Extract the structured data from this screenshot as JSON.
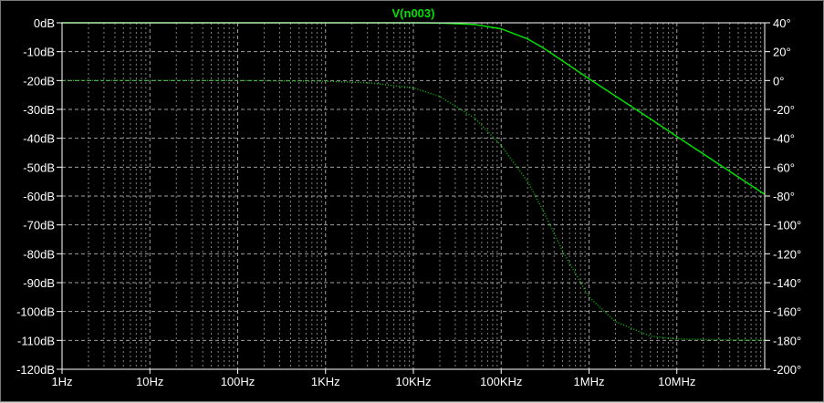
{
  "chart_data": {
    "type": "line",
    "title": "V(n003)",
    "x_scale": "log",
    "x_unit": "Hz",
    "xlim": [
      1,
      100000000
    ],
    "x_ticks": [
      {
        "value": 1,
        "label": "1Hz"
      },
      {
        "value": 10,
        "label": "10Hz"
      },
      {
        "value": 100,
        "label": "100Hz"
      },
      {
        "value": 1000,
        "label": "1KHz"
      },
      {
        "value": 10000,
        "label": "10KHz"
      },
      {
        "value": 100000,
        "label": "100KHz"
      },
      {
        "value": 1000000,
        "label": "1MHz"
      },
      {
        "value": 10000000,
        "label": "10MHz"
      }
    ],
    "y_left": {
      "unit": "dB",
      "ylim": [
        -120,
        0
      ],
      "ticks": [
        {
          "value": 0,
          "label": "0dB"
        },
        {
          "value": -10,
          "label": "-10dB"
        },
        {
          "value": -20,
          "label": "-20dB"
        },
        {
          "value": -30,
          "label": "-30dB"
        },
        {
          "value": -40,
          "label": "-40dB"
        },
        {
          "value": -50,
          "label": "-50dB"
        },
        {
          "value": -60,
          "label": "-60dB"
        },
        {
          "value": -70,
          "label": "-70dB"
        },
        {
          "value": -80,
          "label": "-80dB"
        },
        {
          "value": -90,
          "label": "-90dB"
        },
        {
          "value": -100,
          "label": "-100dB"
        },
        {
          "value": -110,
          "label": "-110dB"
        },
        {
          "value": -120,
          "label": "-120dB"
        }
      ]
    },
    "y_right": {
      "unit": "°",
      "ylim": [
        -200,
        40
      ],
      "ticks": [
        {
          "value": 40,
          "label": "40°"
        },
        {
          "value": 20,
          "label": "20°"
        },
        {
          "value": 0,
          "label": "0°"
        },
        {
          "value": -20,
          "label": "-20°"
        },
        {
          "value": -40,
          "label": "-40°"
        },
        {
          "value": -60,
          "label": "-60°"
        },
        {
          "value": -80,
          "label": "-80°"
        },
        {
          "value": -100,
          "label": "-100°"
        },
        {
          "value": -120,
          "label": "-120°"
        },
        {
          "value": -140,
          "label": "-140°"
        },
        {
          "value": -160,
          "label": "-160°"
        },
        {
          "value": -180,
          "label": "-180°"
        },
        {
          "value": -200,
          "label": "-200°"
        }
      ]
    },
    "grid": true,
    "series": [
      {
        "quantity": "magnitude",
        "axis": "left",
        "style": "solid",
        "color": "#00e000",
        "x": [
          1,
          10,
          100,
          1000,
          10000,
          20000,
          50000,
          100000,
          200000,
          300000,
          500000,
          1000000,
          2000000,
          5000000,
          10000000,
          20000000,
          50000000,
          100000000
        ],
        "y": [
          0,
          0,
          0,
          0,
          0,
          -0.1,
          -0.6,
          -2.1,
          -5.6,
          -8.7,
          -13.2,
          -19.4,
          -25.4,
          -33.3,
          -39.4,
          -45.4,
          -53.4,
          -59.4
        ]
      },
      {
        "quantity": "phase",
        "axis": "right",
        "style": "dotted",
        "color": "#00c000",
        "x": [
          1,
          10,
          100,
          1000,
          3000,
          10000,
          20000,
          50000,
          100000,
          200000,
          300000,
          500000,
          1000000,
          2000000,
          5000000,
          10000000,
          100000000
        ],
        "y": [
          0,
          0,
          0,
          -0.5,
          -1.5,
          -5,
          -11,
          -26,
          -45,
          -70,
          -90,
          -118,
          -150,
          -167,
          -177,
          -179,
          -180
        ]
      }
    ]
  }
}
